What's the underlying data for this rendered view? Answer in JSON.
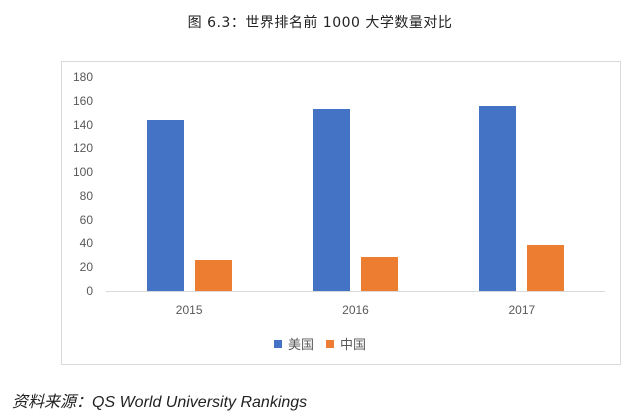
{
  "chart_data": {
    "type": "bar",
    "title": "图 6.3：世界排名前 1000 大学数量对比",
    "categories": [
      "2015",
      "2016",
      "2017"
    ],
    "series": [
      {
        "name": "美国",
        "color": "#4472c4",
        "values": [
          144,
          153,
          156
        ]
      },
      {
        "name": "中国",
        "color": "#ed7d31",
        "values": [
          26,
          29,
          39
        ]
      }
    ],
    "xlabel": "",
    "ylabel": "",
    "ylim": [
      0,
      180
    ],
    "yticks": [
      "0",
      "20",
      "40",
      "60",
      "80",
      "100",
      "120",
      "140",
      "160",
      "180"
    ],
    "grid": false,
    "legend_position": "bottom"
  },
  "title": "图 6.3：世界排名前 1000 大学数量对比",
  "legend": [
    {
      "label": "美国",
      "color": "#4472c4"
    },
    {
      "label": "中国",
      "color": "#ed7d31"
    }
  ],
  "source": "资料来源：QS World University Rankings"
}
